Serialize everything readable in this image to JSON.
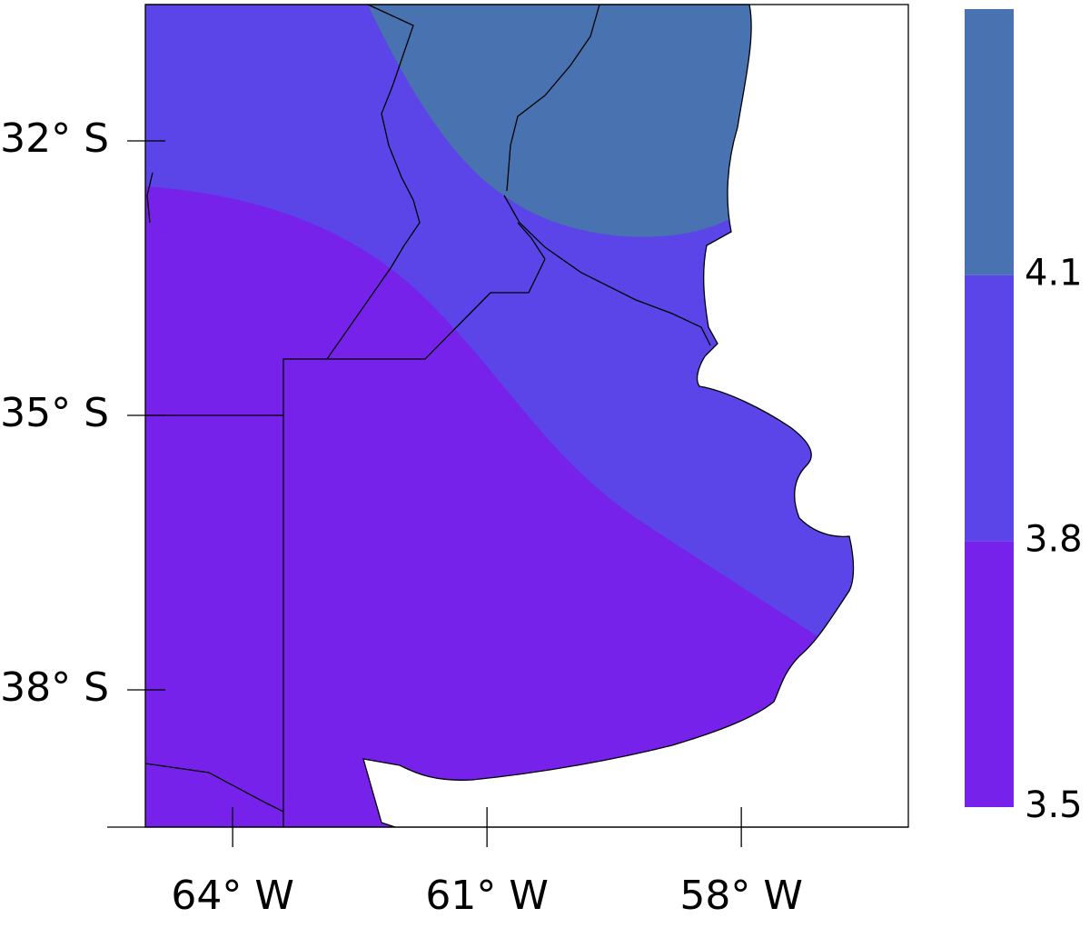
{
  "map": {
    "xlim": [
      -65.03,
      -56.03
    ],
    "ylim": [
      -39.5,
      -30.51
    ],
    "xticks": [
      {
        "value": -64,
        "label": "64° W"
      },
      {
        "value": -61,
        "label": "61° W"
      },
      {
        "value": -58,
        "label": "58° W"
      }
    ],
    "yticks": [
      {
        "value": -32,
        "label": "32° S"
      },
      {
        "value": -35,
        "label": "35° S"
      },
      {
        "value": -38,
        "label": "38° S"
      }
    ]
  },
  "colorbar": {
    "clim": [
      3.5,
      4.4
    ],
    "ticks": [
      3.5,
      3.8,
      4.1
    ],
    "colors": [
      "#7722ea",
      "#5b45e8",
      "#4872b0"
    ]
  }
}
